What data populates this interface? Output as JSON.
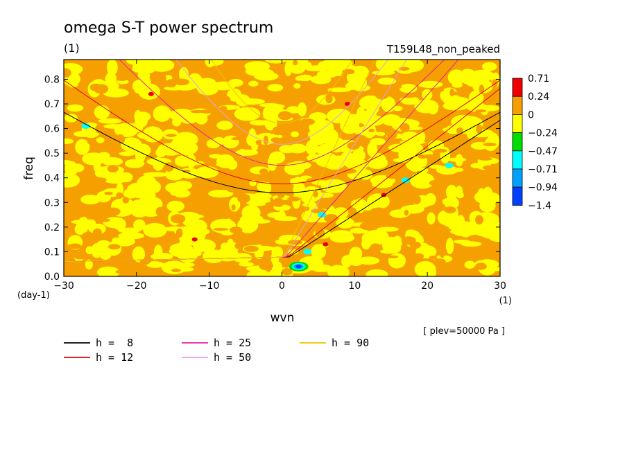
{
  "chart_data": {
    "type": "heatmap",
    "title": "omega S-T power spectrum",
    "title_unit": "(1)",
    "run_label": "T159L48_non_peaked",
    "xlabel": "wvn",
    "xunit": "(1)",
    "ylabel": "freq",
    "yunit": "(day-1)",
    "xlim": [
      -30,
      30
    ],
    "ylim": [
      0,
      0.88
    ],
    "xticks": [
      -30,
      -20,
      -10,
      0,
      10,
      20,
      30
    ],
    "xtick_labels": [
      "-30",
      "-20",
      "-10",
      "0",
      "10",
      "20",
      "30"
    ],
    "yticks": [
      0.0,
      0.1,
      0.2,
      0.3,
      0.4,
      0.5,
      0.6,
      0.7,
      0.8
    ],
    "ytick_labels": [
      "0.0",
      "0.1",
      "0.2",
      "0.3",
      "0.4",
      "0.5",
      "0.6",
      "0.7",
      "0.8"
    ],
    "level_note": "[ plev=50000 Pa ]",
    "colorbar": {
      "levels": [
        "0.71",
        "0.24",
        "0",
        "-0.24",
        "-0.47",
        "-0.71",
        "-0.94",
        "-1.4"
      ],
      "colors": [
        "#ee0000",
        "#f5a000",
        "#ffff00",
        "#00dd00",
        "#00ffff",
        "#00a0ff",
        "#0040ff"
      ]
    },
    "field": {
      "dominant": "orange and yellow speckle (~0 to 0.24)",
      "negative_spots": [
        {
          "x": 2.3,
          "y": 0.04,
          "level": "-1.4"
        },
        {
          "x": 3.5,
          "y": 0.1,
          "level": "-0.47"
        },
        {
          "x": 5.5,
          "y": 0.25,
          "level": "-0.47"
        },
        {
          "x": 17,
          "y": 0.39,
          "level": "-0.47"
        },
        {
          "x": 23,
          "y": 0.45,
          "level": "-0.47"
        },
        {
          "x": -27,
          "y": 0.61,
          "level": "-0.47"
        }
      ],
      "positive_spots": [
        {
          "x": 9,
          "y": 0.7,
          "level": "0.71"
        },
        {
          "x": -12,
          "y": 0.15,
          "level": "0.71"
        },
        {
          "x": -18,
          "y": 0.74,
          "level": "0.71"
        },
        {
          "x": 6,
          "y": 0.13,
          "level": "0.71"
        },
        {
          "x": 14,
          "y": 0.33,
          "level": "0.71"
        }
      ]
    },
    "dispersion_curves": {
      "h_values": [
        8,
        12,
        25,
        50,
        90
      ],
      "colors": {
        "8": "#000000",
        "12": "#e00000",
        "25": "#e020a0",
        "50": "#e0a0e0",
        "90": "#f0c000"
      }
    },
    "legend": [
      {
        "label": "h =  8",
        "color": "#000000"
      },
      {
        "label": "h = 12",
        "color": "#e00000"
      },
      {
        "label": "h = 25",
        "color": "#e020a0"
      },
      {
        "label": "h = 50",
        "color": "#e0a0e0"
      },
      {
        "label": "h = 90",
        "color": "#f0c000"
      }
    ]
  }
}
